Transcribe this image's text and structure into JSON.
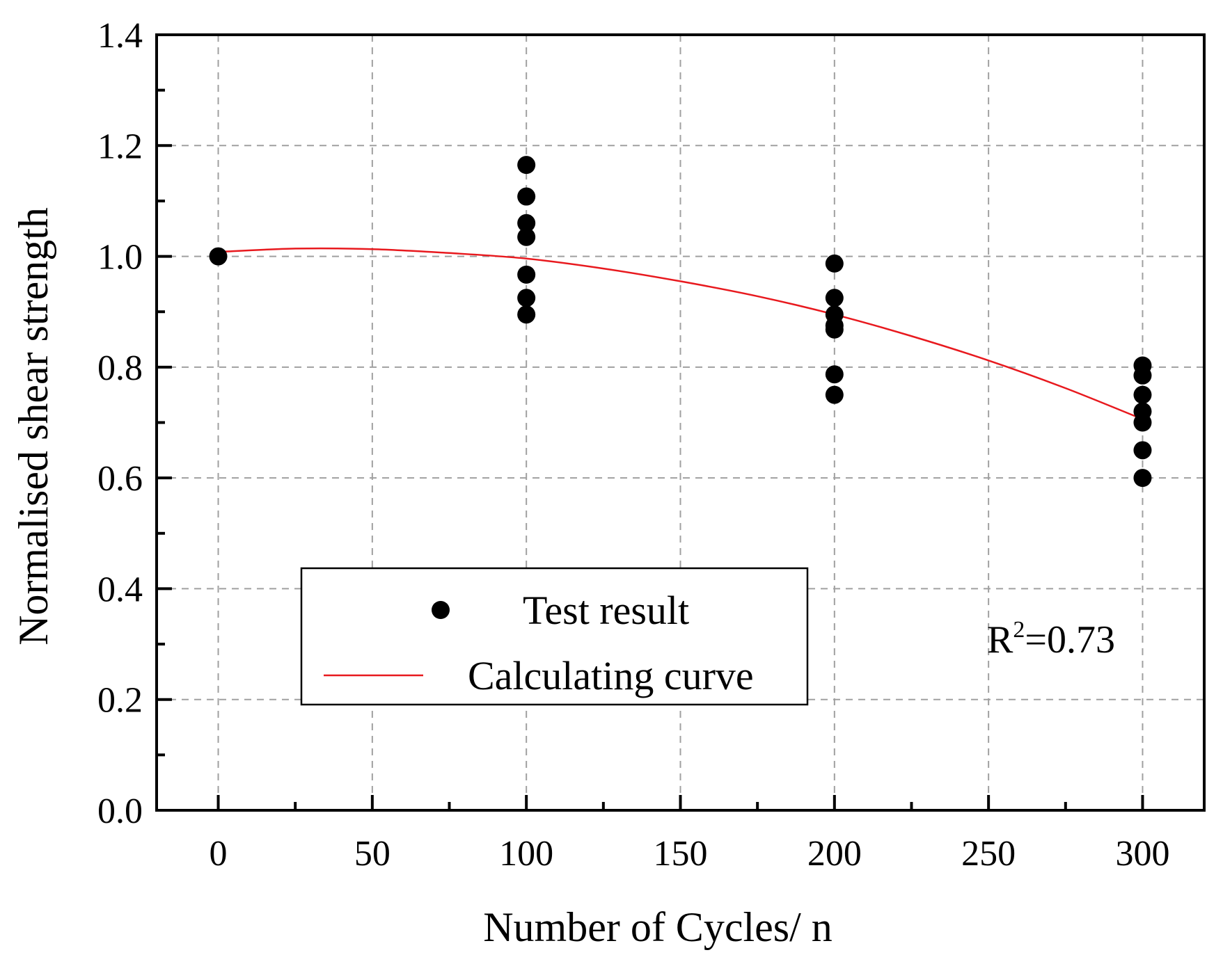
{
  "chart_data": {
    "type": "scatter",
    "title": "",
    "xlabel": "Number of Cycles/ n",
    "ylabel": "Normalised shear strength",
    "xlim": [
      -20,
      320
    ],
    "ylim": [
      0.0,
      1.4
    ],
    "x_ticks": [
      0,
      50,
      100,
      150,
      200,
      250,
      300
    ],
    "x_tick_labels": [
      "0",
      "50",
      "100",
      "150",
      "200",
      "250",
      "300"
    ],
    "x_minor_ticks": [
      25,
      75,
      125,
      175,
      225,
      275
    ],
    "y_ticks": [
      0.0,
      0.2,
      0.4,
      0.6,
      0.8,
      1.0,
      1.2,
      1.4
    ],
    "y_tick_labels": [
      "0.0",
      "0.2",
      "0.4",
      "0.6",
      "0.8",
      "1.0",
      "1.2",
      "1.4"
    ],
    "y_minor_ticks": [
      0.1,
      0.3,
      0.5,
      0.7,
      0.9,
      1.1,
      1.3
    ],
    "grid": true,
    "legend_position": "lower-left-center",
    "series": [
      {
        "name": "Test result",
        "kind": "scatter",
        "color": "#000000",
        "points": [
          {
            "x": 0,
            "y": 1.0
          },
          {
            "x": 100,
            "y": 1.165
          },
          {
            "x": 100,
            "y": 1.108
          },
          {
            "x": 100,
            "y": 1.06
          },
          {
            "x": 100,
            "y": 1.035
          },
          {
            "x": 100,
            "y": 0.967
          },
          {
            "x": 100,
            "y": 0.925
          },
          {
            "x": 100,
            "y": 0.895
          },
          {
            "x": 200,
            "y": 0.987
          },
          {
            "x": 200,
            "y": 0.925
          },
          {
            "x": 200,
            "y": 0.895
          },
          {
            "x": 200,
            "y": 0.875
          },
          {
            "x": 200,
            "y": 0.868
          },
          {
            "x": 200,
            "y": 0.787
          },
          {
            "x": 200,
            "y": 0.75
          },
          {
            "x": 300,
            "y": 0.803
          },
          {
            "x": 300,
            "y": 0.785
          },
          {
            "x": 300,
            "y": 0.75
          },
          {
            "x": 300,
            "y": 0.72
          },
          {
            "x": 300,
            "y": 0.7
          },
          {
            "x": 300,
            "y": 0.65
          },
          {
            "x": 300,
            "y": 0.6
          }
        ]
      },
      {
        "name": "Calculating curve",
        "kind": "line",
        "color": "#e8191e",
        "points": [
          {
            "x": 0,
            "y": 1.008
          },
          {
            "x": 25,
            "y": 1.014
          },
          {
            "x": 50,
            "y": 1.013
          },
          {
            "x": 75,
            "y": 1.006
          },
          {
            "x": 100,
            "y": 0.996
          },
          {
            "x": 125,
            "y": 0.978
          },
          {
            "x": 150,
            "y": 0.955
          },
          {
            "x": 175,
            "y": 0.928
          },
          {
            "x": 200,
            "y": 0.895
          },
          {
            "x": 225,
            "y": 0.856
          },
          {
            "x": 250,
            "y": 0.812
          },
          {
            "x": 275,
            "y": 0.762
          },
          {
            "x": 300,
            "y": 0.706
          }
        ]
      }
    ],
    "annotation": {
      "base": "R",
      "superscript": "2",
      "rest": "=0.73"
    }
  }
}
